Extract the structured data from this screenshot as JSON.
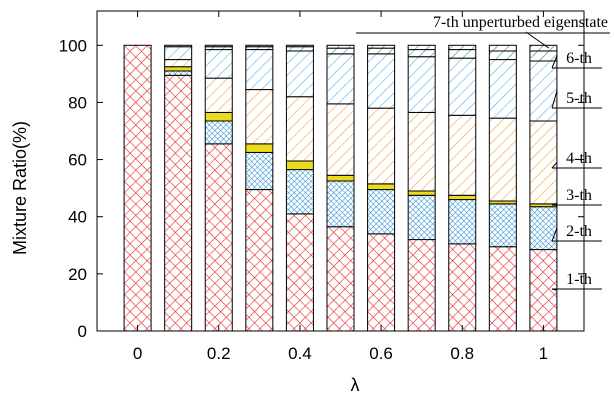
{
  "chart_data": {
    "type": "bar",
    "stacked": true,
    "xlabel": "λ",
    "ylabel": "Mixture Ratio(%)",
    "ylim": [
      0,
      112
    ],
    "xlim": [
      -0.1,
      1.1
    ],
    "x": [
      0,
      0.1,
      0.2,
      0.3,
      0.4,
      0.5,
      0.6,
      0.7,
      0.8,
      0.9,
      1.0
    ],
    "xticks": [
      "0",
      "0.2",
      "0.4",
      "0.6",
      "0.8",
      "1"
    ],
    "xtick_values": [
      0,
      0.2,
      0.4,
      0.6,
      0.8,
      1.0
    ],
    "yticks": [
      0,
      20,
      40,
      60,
      80,
      100
    ],
    "grid": false,
    "series": [
      {
        "name": "1-th",
        "color": "#e8262b",
        "pattern": "crosshatch",
        "values": [
          100,
          89.5,
          65.5,
          49.5,
          41,
          36.5,
          34,
          32,
          30.5,
          29.5,
          28.5
        ]
      },
      {
        "name": "2-th",
        "color": "#1f8ad1",
        "pattern": "dense-crosshatch",
        "values": [
          0,
          1.5,
          8,
          13,
          15.5,
          16,
          15.5,
          15.5,
          15.5,
          15,
          15
        ]
      },
      {
        "name": "3-th",
        "color": "#eadb1c",
        "pattern": "solid",
        "values": [
          0,
          1.5,
          3,
          3,
          3,
          2,
          2,
          1.5,
          1.5,
          1,
          1
        ]
      },
      {
        "name": "4-th",
        "color": "#f1a33c",
        "pattern": "hatch",
        "values": [
          0,
          2.5,
          12,
          19,
          22.5,
          25,
          26.5,
          27.5,
          28,
          29,
          29
        ]
      },
      {
        "name": "5-th",
        "color": "#53b4e6",
        "pattern": "hatch",
        "values": [
          0,
          4.5,
          10,
          14,
          16,
          17.5,
          19,
          19.5,
          20,
          20.5,
          21
        ]
      },
      {
        "name": "6-th",
        "color": "#23a073",
        "pattern": "hatch",
        "values": [
          0,
          0.5,
          1,
          1,
          1.5,
          2,
          2,
          2.5,
          3,
          3,
          3.5
        ]
      },
      {
        "name": "7-th unperturbed eigenstate",
        "color": "#9e3fc1",
        "pattern": "hatch",
        "values": [
          0,
          0,
          0.5,
          0.5,
          0.5,
          1,
          1,
          1.5,
          1.5,
          2,
          2
        ]
      }
    ]
  }
}
